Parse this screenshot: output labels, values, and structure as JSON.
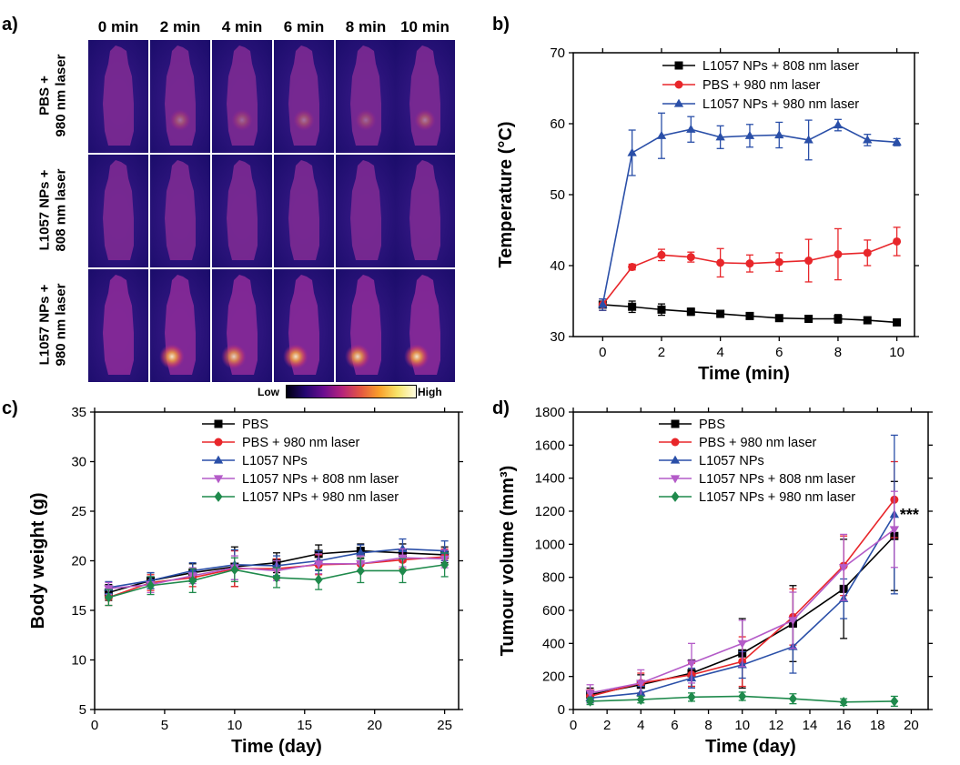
{
  "panel_labels": {
    "a": "a)",
    "b": "b)",
    "c": "c)",
    "d": "d)"
  },
  "thermal_images": {
    "time_labels": [
      "0 min",
      "2 min",
      "4 min",
      "6 min",
      "8 min",
      "10 min"
    ],
    "rows": [
      {
        "label": "PBS +\n980 nm laser",
        "hotspot_intensity": [
          0,
          0.35,
          0.3,
          0.35,
          0.3,
          0.4
        ]
      },
      {
        "label": "L1057 NPs +\n808 nm laser",
        "hotspot_intensity": [
          0,
          0,
          0,
          0,
          0,
          0
        ]
      },
      {
        "label": "L1057 NPs +\n980 nm laser",
        "hotspot_intensity": [
          0,
          0.9,
          0.8,
          0.9,
          0.85,
          0.9
        ]
      }
    ],
    "colorbar": {
      "low": "Low",
      "high": "High"
    }
  },
  "chart_data": [
    {
      "id": "b",
      "type": "line",
      "xlabel": "Time (min)",
      "ylabel": "Temperature (°C)",
      "xlim": [
        -1,
        10.6
      ],
      "ylim": [
        30,
        70
      ],
      "xticks": [
        0,
        2,
        4,
        6,
        8,
        10
      ],
      "yticks": [
        30,
        40,
        50,
        60,
        70
      ],
      "legend_position": "top-right",
      "x": [
        0,
        1,
        2,
        3,
        4,
        5,
        6,
        7,
        8,
        9,
        10
      ],
      "series": [
        {
          "name": "L1057 NPs + 808 nm laser",
          "color": "#000000",
          "marker": "square",
          "values": [
            34.5,
            34.2,
            33.8,
            33.5,
            33.2,
            32.9,
            32.6,
            32.5,
            32.5,
            32.3,
            32.0
          ],
          "errors": [
            0.8,
            0.8,
            0.8,
            0.5,
            0.5,
            0.4,
            0.4,
            0.3,
            0.6,
            0.3,
            0.3
          ]
        },
        {
          "name": "PBS + 980 nm laser",
          "color": "#e8262a",
          "marker": "circle",
          "values": [
            34.5,
            39.8,
            41.5,
            41.2,
            40.4,
            40.3,
            40.5,
            40.7,
            41.6,
            41.8,
            43.4
          ],
          "errors": [
            0.8,
            0.4,
            0.8,
            0.7,
            2.0,
            1.2,
            1.3,
            3.0,
            3.6,
            1.8,
            2.0
          ]
        },
        {
          "name": "L1057 NPs + 980 nm laser",
          "color": "#2a4fa8",
          "marker": "triangle",
          "values": [
            34.5,
            55.9,
            58.3,
            59.2,
            58.1,
            58.3,
            58.4,
            57.7,
            59.8,
            57.7,
            57.4
          ],
          "errors": [
            0.8,
            3.2,
            3.2,
            1.8,
            1.6,
            1.6,
            1.8,
            2.8,
            0.8,
            0.8,
            0.5
          ]
        }
      ]
    },
    {
      "id": "c",
      "type": "line",
      "xlabel": "Time (day)",
      "ylabel": "Body weight (g)",
      "xlim": [
        0,
        26
      ],
      "ylim": [
        5,
        35
      ],
      "xticks": [
        0,
        5,
        10,
        15,
        20,
        25
      ],
      "yticks": [
        5,
        10,
        15,
        20,
        25,
        30,
        35
      ],
      "legend_position": "top-right",
      "x": [
        1,
        4,
        7,
        10,
        13,
        16,
        19,
        22,
        25
      ],
      "series": [
        {
          "name": "PBS",
          "color": "#000000",
          "marker": "square",
          "values": [
            16.8,
            18.0,
            18.8,
            19.4,
            19.8,
            20.7,
            21.0,
            20.8,
            20.6
          ],
          "errors": [
            0.8,
            0.8,
            0.9,
            2.0,
            1.0,
            0.9,
            0.7,
            0.9,
            0.8
          ]
        },
        {
          "name": "PBS + 980 nm laser",
          "color": "#e8262a",
          "marker": "circle",
          "values": [
            16.3,
            17.8,
            18.3,
            19.2,
            19.2,
            19.6,
            19.7,
            20.1,
            20.4
          ],
          "errors": [
            0.8,
            0.8,
            0.9,
            1.8,
            1.0,
            1.0,
            0.8,
            0.9,
            0.8
          ]
        },
        {
          "name": "L1057 NPs",
          "color": "#2a4fa8",
          "marker": "triangle",
          "values": [
            17.3,
            18.0,
            19.0,
            19.6,
            19.5,
            20.0,
            20.8,
            21.2,
            21.0
          ],
          "errors": [
            0.6,
            0.8,
            0.8,
            1.5,
            1.0,
            1.0,
            0.8,
            1.0,
            1.0
          ]
        },
        {
          "name": "L1057 NPs + 808 nm laser",
          "color": "#b45bc8",
          "marker": "triangle-down",
          "values": [
            17.2,
            17.6,
            18.5,
            19.3,
            19.0,
            19.7,
            19.7,
            20.3,
            20.2
          ],
          "errors": [
            0.6,
            0.8,
            0.8,
            1.2,
            1.0,
            1.0,
            0.8,
            0.9,
            0.9
          ]
        },
        {
          "name": "L1057 NPs + 980 nm laser",
          "color": "#1f8a4c",
          "marker": "diamond",
          "values": [
            16.3,
            17.5,
            18.0,
            19.1,
            18.3,
            18.1,
            19.0,
            19.0,
            19.6
          ],
          "errors": [
            0.8,
            0.9,
            1.2,
            1.2,
            1.0,
            1.0,
            1.2,
            1.2,
            1.2
          ]
        }
      ]
    },
    {
      "id": "d",
      "type": "line",
      "xlabel": "Time (day)",
      "ylabel": "Tumour volume (mm³)",
      "xlim": [
        0,
        21
      ],
      "ylim": [
        0,
        1800
      ],
      "xticks": [
        0,
        2,
        4,
        6,
        8,
        10,
        12,
        14,
        16,
        18,
        20
      ],
      "yticks": [
        0,
        200,
        400,
        600,
        800,
        1000,
        1200,
        1400,
        1600,
        1800
      ],
      "legend_position": "top-left",
      "annotation": {
        "text": "***",
        "x": 19,
        "y": 1200
      },
      "x": [
        1,
        4,
        7,
        10,
        13,
        16,
        19
      ],
      "series": [
        {
          "name": "PBS",
          "color": "#000000",
          "marker": "square",
          "values": [
            90,
            150,
            220,
            340,
            520,
            730,
            1050
          ],
          "errors": [
            40,
            60,
            80,
            210,
            230,
            300,
            330
          ]
        },
        {
          "name": "PBS + 980 nm laser",
          "color": "#e8262a",
          "marker": "circle",
          "values": [
            80,
            160,
            210,
            290,
            560,
            870,
            1270
          ],
          "errors": [
            40,
            60,
            70,
            150,
            170,
            180,
            230
          ]
        },
        {
          "name": "L1057 NPs",
          "color": "#2a4fa8",
          "marker": "triangle",
          "values": [
            70,
            100,
            190,
            270,
            380,
            670,
            1180
          ],
          "errors": [
            30,
            40,
            60,
            80,
            160,
            120,
            480
          ]
        },
        {
          "name": "L1057 NPs + 808 nm laser",
          "color": "#b45bc8",
          "marker": "triangle-down",
          "values": [
            100,
            160,
            280,
            400,
            540,
            860,
            1090
          ],
          "errors": [
            50,
            80,
            120,
            140,
            170,
            200,
            230
          ]
        },
        {
          "name": "L1057 NPs + 980 nm laser",
          "color": "#1f8a4c",
          "marker": "diamond",
          "values": [
            50,
            60,
            75,
            80,
            65,
            45,
            50
          ],
          "errors": [
            20,
            20,
            25,
            25,
            30,
            20,
            30
          ]
        }
      ]
    }
  ]
}
